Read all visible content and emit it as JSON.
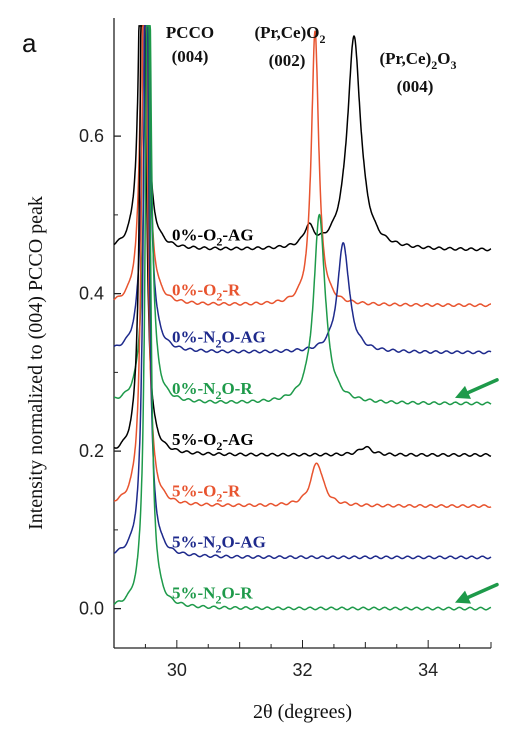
{
  "chart_data": {
    "type": "line",
    "panel_label": "a",
    "xlabel": "2θ (degrees)",
    "ylabel": "Intensity normalized to (004) PCCO peak",
    "xlim": [
      29.0,
      35.0
    ],
    "ylim": [
      -0.05,
      0.75
    ],
    "x_ticks": [
      30,
      32,
      34
    ],
    "y_ticks": [
      0.0,
      0.2,
      0.4,
      0.6
    ],
    "x_tick_labels": [
      "30",
      "32",
      "34"
    ],
    "y_tick_labels": [
      "0.0",
      "0.2",
      "0.4",
      "0.6"
    ],
    "grid": false,
    "legend": "inline labels next to curves",
    "peak_annotations": [
      {
        "line1": "PCCO",
        "line2": "(004)",
        "x": 29.65
      },
      {
        "line1_main": "(Pr,Ce)O",
        "line1_sub": "2",
        "line2": "(002)",
        "x": 32.2
      },
      {
        "line1_main": "(Pr,Ce)",
        "line1_sub": "2",
        "line1_tail": "O",
        "line1_sub2": "3",
        "line2": "(004)",
        "x": 33.75
      }
    ],
    "series": [
      {
        "name_main": "0%-O",
        "name_sub": "2",
        "name_tail": "-AG",
        "color": "#000000",
        "baseline": 0.455,
        "peaks": [
          {
            "x": 32.1,
            "h": 0.025,
            "w": 0.09
          },
          {
            "x": 32.82,
            "h": 0.27,
            "w": 0.13
          }
        ]
      },
      {
        "name_main": "0%-O",
        "name_sub": "2",
        "name_tail": "-R",
        "color": "#e8542f",
        "baseline": 0.385,
        "peaks": [
          {
            "x": 32.2,
            "h": 0.35,
            "w": 0.07
          }
        ]
      },
      {
        "name_main": "0%-N",
        "name_sub": "2",
        "name_tail": "O-AG",
        "color": "#1e2a8c",
        "baseline": 0.325,
        "peaks": [
          {
            "x": 32.65,
            "h": 0.14,
            "w": 0.11
          }
        ]
      },
      {
        "name_main": "0%-N",
        "name_sub": "2",
        "name_tail": "O-R",
        "color": "#1e9a4a",
        "baseline": 0.26,
        "peaks": [
          {
            "x": 32.27,
            "h": 0.24,
            "w": 0.11
          }
        ],
        "arrow": true
      },
      {
        "name_main": "5%-O",
        "name_sub": "2",
        "name_tail": "-AG",
        "color": "#000000",
        "baseline": 0.195,
        "peaks": [
          {
            "x": 33.0,
            "h": 0.01,
            "w": 0.12
          }
        ]
      },
      {
        "name_main": "5%-O",
        "name_sub": "2",
        "name_tail": "-R",
        "color": "#e8542f",
        "baseline": 0.13,
        "peaks": [
          {
            "x": 32.23,
            "h": 0.055,
            "w": 0.12
          }
        ]
      },
      {
        "name_main": "5%-N",
        "name_sub": "2",
        "name_tail": "O-AG",
        "color": "#1e2a8c",
        "baseline": 0.065,
        "peaks": []
      },
      {
        "name_main": "5%-N",
        "name_sub": "2",
        "name_tail": "O-R",
        "color": "#1e9a4a",
        "baseline": 0.0,
        "peaks": [],
        "arrow": true
      }
    ],
    "pcco_peak_x": 29.5,
    "arrow_color": "#1e9a4a"
  }
}
